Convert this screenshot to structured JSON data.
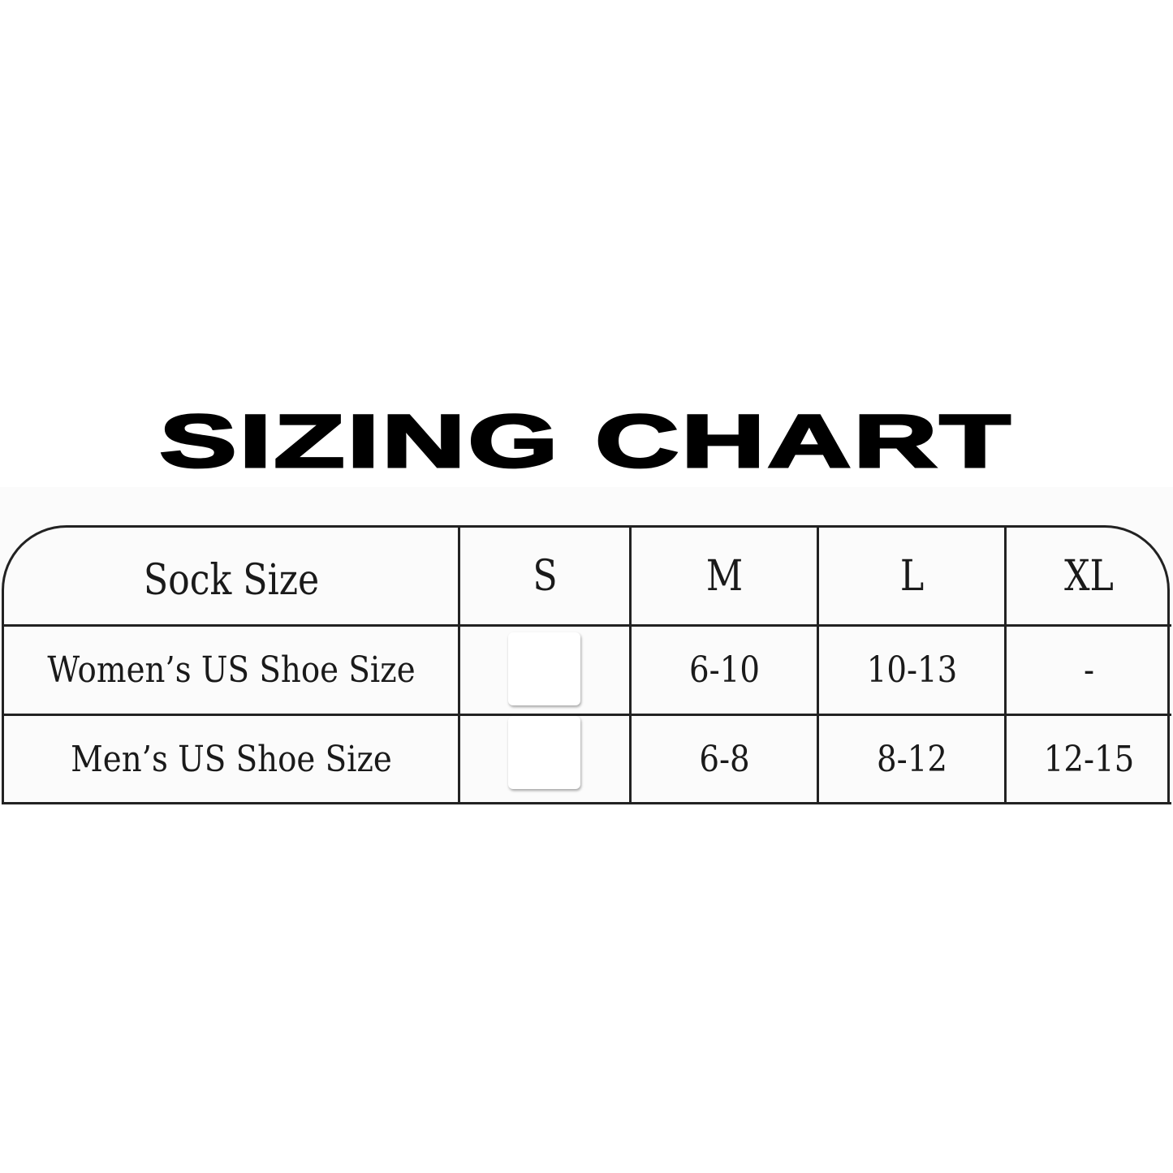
{
  "title": "SIZING CHART",
  "table": {
    "headers": [
      "Sock Size",
      "S",
      "M",
      "L",
      "XL"
    ],
    "rows": [
      {
        "label": "Women’s US Shoe Size",
        "values": [
          "",
          "6-10",
          "10-13",
          "-"
        ]
      },
      {
        "label": "Men’s US Shoe Size",
        "values": [
          "",
          "6-8",
          "8-12",
          "12-15"
        ]
      }
    ]
  }
}
